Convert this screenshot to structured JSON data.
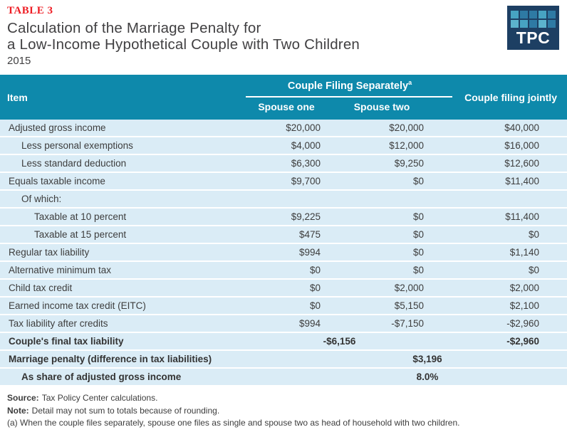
{
  "colors": {
    "header_teal": "#0e89ab",
    "row_light_blue": "#daecf6",
    "accent_red": "#ee1c23",
    "logo_navy": "#1d3f63",
    "text_dark": "#3d3d3d"
  },
  "title_block": {
    "table_label": "TABLE 3",
    "title_line1": "Calculation of the Marriage Penalty for",
    "title_line2": "a Low-Income Hypothetical Couple with Two Children",
    "year": "2015"
  },
  "logo": {
    "text": "TPC",
    "squares": [
      "#47a3c2",
      "#2e7aa4",
      "#2e7aa4",
      "#47a3c2",
      "#2e7aa4",
      "#5cb3cd",
      "#47a3c2",
      "#2e7aa4",
      "#5cb3cd",
      "#2e7aa4"
    ]
  },
  "table": {
    "header": {
      "item": "Item",
      "group_label": "Couple Filing Separately",
      "group_footnote_mark": "a",
      "spouse_one": "Spouse one",
      "spouse_two": "Spouse two",
      "jointly": "Couple filing jointly"
    },
    "rows": [
      {
        "label": "Adjusted gross income",
        "indent": 0,
        "bold": false,
        "layout": "normal",
        "spouse_one": "$20,000",
        "spouse_two": "$20,000",
        "jointly": "$40,000"
      },
      {
        "label": "Less personal exemptions",
        "indent": 1,
        "bold": false,
        "layout": "normal",
        "spouse_one": "$4,000",
        "spouse_two": "$12,000",
        "jointly": "$16,000"
      },
      {
        "label": "Less standard deduction",
        "indent": 1,
        "bold": false,
        "layout": "normal",
        "spouse_one": "$6,300",
        "spouse_two": "$9,250",
        "jointly": "$12,600"
      },
      {
        "label": "Equals taxable income",
        "indent": 0,
        "bold": false,
        "layout": "normal",
        "spouse_one": "$9,700",
        "spouse_two": "$0",
        "jointly": "$11,400"
      },
      {
        "label": "Of which:",
        "indent": 1,
        "bold": false,
        "layout": "normal",
        "spouse_one": "",
        "spouse_two": "",
        "jointly": ""
      },
      {
        "label": "Taxable at 10 percent",
        "indent": 2,
        "bold": false,
        "layout": "normal",
        "spouse_one": "$9,225",
        "spouse_two": "$0",
        "jointly": "$11,400"
      },
      {
        "label": "Taxable at 15 percent",
        "indent": 2,
        "bold": false,
        "layout": "normal",
        "spouse_one": "$475",
        "spouse_two": "$0",
        "jointly": "$0"
      },
      {
        "label": "Regular tax liability",
        "indent": 0,
        "bold": false,
        "layout": "normal",
        "spouse_one": "$994",
        "spouse_two": "$0",
        "jointly": "$1,140"
      },
      {
        "label": "Alternative minimum tax",
        "indent": 0,
        "bold": false,
        "layout": "normal",
        "spouse_one": "$0",
        "spouse_two": "$0",
        "jointly": "$0"
      },
      {
        "label": "Child tax credit",
        "indent": 0,
        "bold": false,
        "layout": "normal",
        "spouse_one": "$0",
        "spouse_two": "$2,000",
        "jointly": "$2,000"
      },
      {
        "label": "Earned income tax credit (EITC)",
        "indent": 0,
        "bold": false,
        "layout": "normal",
        "spouse_one": "$0",
        "spouse_two": "$5,150",
        "jointly": "$2,100"
      },
      {
        "label": "Tax liability after credits",
        "indent": 0,
        "bold": false,
        "layout": "normal",
        "spouse_one": "$994",
        "spouse_two": "-$7,150",
        "jointly": "-$2,960"
      },
      {
        "label": "Couple's final tax liability",
        "indent": 0,
        "bold": true,
        "layout": "span2",
        "separate_combined": "-$6,156",
        "jointly": "-$2,960"
      },
      {
        "label": "Marriage penalty (difference in tax liabilities)",
        "indent": 0,
        "bold": true,
        "layout": "span3",
        "value": "$3,196"
      },
      {
        "label": "As share of adjusted gross income",
        "indent": 1,
        "bold": true,
        "layout": "span3",
        "value": "8.0%"
      }
    ]
  },
  "footnotes": {
    "source_label": "Source:",
    "source_text": "Tax Policy Center calculations.",
    "note_label": "Note:",
    "note_text": "Detail may not sum to totals because of rounding.",
    "footnote_a": "(a) When the couple files separately, spouse one files as single and spouse two as head of household with two children."
  }
}
